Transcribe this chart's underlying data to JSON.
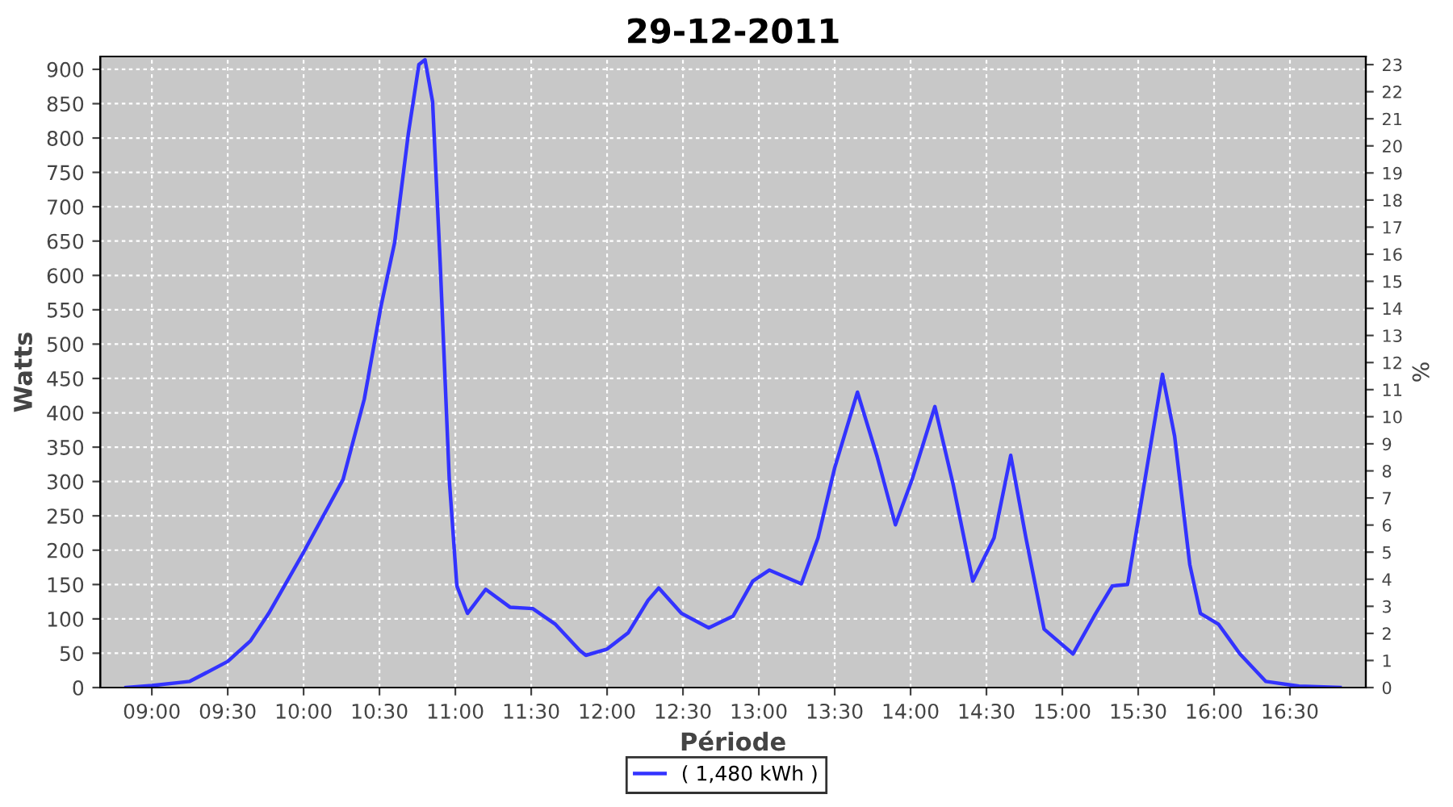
{
  "chart_data": {
    "type": "line",
    "title": "29-12-2011",
    "xlabel": "Période",
    "ylabel": "Watts",
    "y2label": "%",
    "xlim": [
      8.66,
      17.0
    ],
    "xticks": [
      {
        "value": 9,
        "label": "09:00"
      },
      {
        "value": 9.5,
        "label": "09:30"
      },
      {
        "value": 10,
        "label": "10:00"
      },
      {
        "value": 10.5,
        "label": "10:30"
      },
      {
        "value": 11,
        "label": "11:00"
      },
      {
        "value": 11.5,
        "label": "11:30"
      },
      {
        "value": 12,
        "label": "12:00"
      },
      {
        "value": 12.5,
        "label": "12:30"
      },
      {
        "value": 13,
        "label": "13:00"
      },
      {
        "value": 13.5,
        "label": "13:30"
      },
      {
        "value": 14,
        "label": "14:00"
      },
      {
        "value": 14.5,
        "label": "14:30"
      },
      {
        "value": 15,
        "label": "15:00"
      },
      {
        "value": 15.5,
        "label": "15:30"
      },
      {
        "value": 16,
        "label": "16:00"
      },
      {
        "value": 16.5,
        "label": "16:30"
      }
    ],
    "ylim": [
      0,
      918.7
    ],
    "yticks": [
      0,
      50,
      100,
      150,
      200,
      250,
      300,
      350,
      400,
      450,
      500,
      550,
      600,
      650,
      700,
      750,
      800,
      850,
      900
    ],
    "y2lim": [
      0,
      23.3
    ],
    "y2ticks": [
      0,
      1,
      2,
      3,
      4,
      5,
      6,
      7,
      8,
      9,
      10,
      11,
      12,
      13,
      14,
      15,
      16,
      17,
      18,
      19,
      20,
      21,
      22,
      23
    ],
    "grid": true,
    "legend": "bottom",
    "line_style": "solid",
    "marker": "none",
    "series": [
      {
        "name": "( 1,480 kWh )",
        "color": "#3333ff",
        "x": [
          8.83,
          9.0,
          9.25,
          9.5,
          9.65,
          9.77,
          10.0,
          10.26,
          10.4,
          10.51,
          10.6,
          10.69,
          10.76,
          10.8,
          10.85,
          10.9,
          10.96,
          11.01,
          11.08,
          11.2,
          11.36,
          11.51,
          11.66,
          11.82,
          11.86,
          12.0,
          12.14,
          12.27,
          12.34,
          12.49,
          12.67,
          12.83,
          12.96,
          13.07,
          13.28,
          13.39,
          13.5,
          13.65,
          13.78,
          13.9,
          14.01,
          14.16,
          14.28,
          14.41,
          14.55,
          14.66,
          14.76,
          14.88,
          15.07,
          15.22,
          15.33,
          15.43,
          15.58,
          15.66,
          15.74,
          15.84,
          15.91,
          16.03,
          16.17,
          16.34,
          16.56,
          16.83
        ],
        "values": [
          0,
          3,
          9,
          38,
          68,
          108,
          197,
          303,
          420,
          555,
          648,
          806,
          907,
          914,
          853,
          618,
          303,
          148,
          108,
          143,
          117,
          115,
          92,
          54,
          47,
          56,
          80,
          127,
          145,
          108,
          87,
          104,
          155,
          171,
          151,
          218,
          320,
          430,
          336,
          237,
          303,
          409,
          296,
          155,
          218,
          338,
          218,
          85,
          49,
          108,
          148,
          150,
          350,
          456,
          366,
          179,
          108,
          92,
          49,
          9,
          2,
          0
        ]
      }
    ]
  }
}
